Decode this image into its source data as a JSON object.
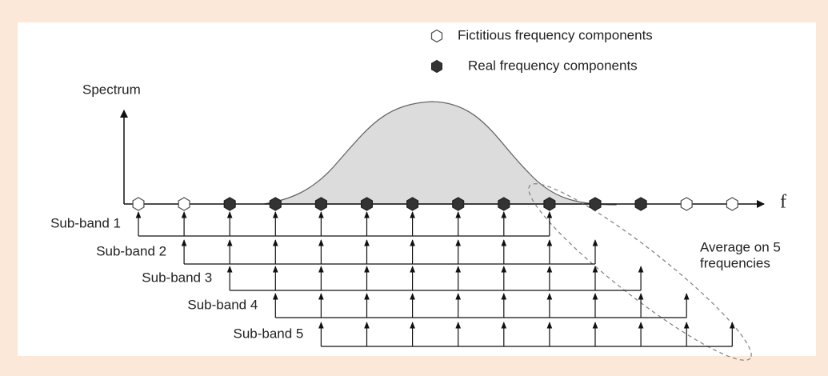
{
  "legend": [
    {
      "label": "Fictitious frequency components"
    },
    {
      "label": "Real frequency components"
    }
  ],
  "axis": {
    "y_label": "Spectrum",
    "x_label": "f"
  },
  "subbands": [
    "Sub-band 1",
    "Sub-band 2",
    "Sub-band 3",
    "Sub-band 4",
    "Sub-band 5"
  ],
  "annotation": [
    "Average on 5",
    "frequencies"
  ]
}
